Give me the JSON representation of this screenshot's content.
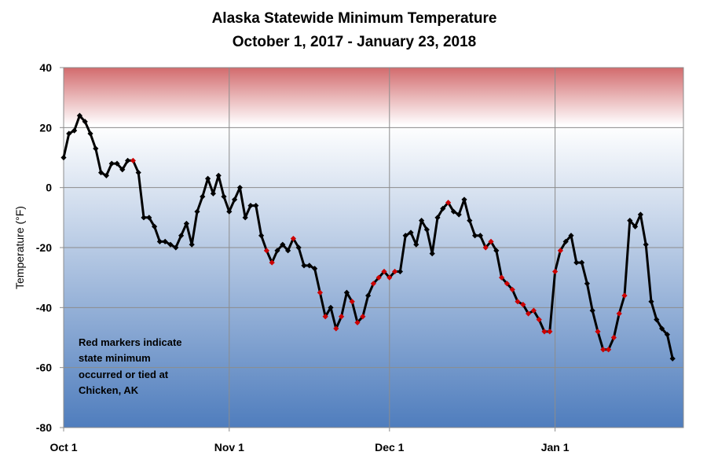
{
  "chart_data": {
    "type": "line",
    "title": "Alaska Statewide Minimum Temperature",
    "subtitle": "October 1, 2017 - January 23, 2018",
    "ylabel": "Temperature (°F)",
    "xlabel": "",
    "ylim": [
      -80,
      40
    ],
    "yticks": [
      40,
      20,
      0,
      -20,
      -40,
      -60,
      -80
    ],
    "xtick_labels": [
      {
        "day": 0,
        "label": "Oct 1"
      },
      {
        "day": 31,
        "label": "Nov 1"
      },
      {
        "day": 61,
        "label": "Dec 1"
      },
      {
        "day": 92,
        "label": "Jan 1"
      }
    ],
    "x_start_date": "2017-10-01",
    "grid": true,
    "background_gradient": {
      "top": "#d26b6d",
      "mid": "#ffffff",
      "bottom": "#4f7dbd"
    },
    "line_color": "#000000",
    "marker_color": "#000000",
    "highlight_marker_color": "#cc0000",
    "series": [
      {
        "values": [
          10,
          18,
          19,
          24,
          22,
          18,
          13,
          5,
          4,
          8,
          8,
          6,
          9,
          9,
          5,
          -10,
          -10,
          -13,
          -18,
          -18,
          -19,
          -20,
          -16,
          -12,
          -19,
          -8,
          -3,
          3,
          -2,
          4,
          -3,
          -8,
          -4,
          0,
          -10,
          -6,
          -6,
          -16,
          -21,
          -25,
          -21,
          -19,
          -21,
          -17,
          -20,
          -26,
          -26,
          -27,
          -35,
          -43,
          -40,
          -47,
          -43,
          -35,
          -38,
          -45,
          -43,
          -36,
          -32,
          -30,
          -28,
          -30,
          -28,
          -28,
          -16,
          -15,
          -19,
          -11,
          -14,
          -22,
          -10,
          -7,
          -5,
          -8,
          -9,
          -4,
          -11,
          -16,
          -16,
          -20,
          -18,
          -21,
          -30,
          -32,
          -34,
          -38,
          -39,
          -42,
          -41,
          -44,
          -48,
          -48,
          -28,
          -21,
          -18,
          -16,
          -25,
          -25,
          -32,
          -41,
          -48,
          -54,
          -54,
          -50,
          -42,
          -36,
          -11,
          -13,
          -9,
          -19,
          -38,
          -44,
          -47,
          -49,
          -57
        ],
        "highlight_indices": [
          13,
          38,
          39,
          43,
          48,
          49,
          51,
          52,
          54,
          55,
          56,
          58,
          59,
          60,
          61,
          62,
          72,
          79,
          80,
          82,
          83,
          84,
          85,
          86,
          87,
          88,
          89,
          90,
          91,
          92,
          93,
          100,
          101,
          102,
          103,
          104,
          105
        ]
      }
    ],
    "annotation": [
      "Red markers indicate",
      "state minimum",
      "occurred or tied at",
      "Chicken, AK"
    ]
  }
}
